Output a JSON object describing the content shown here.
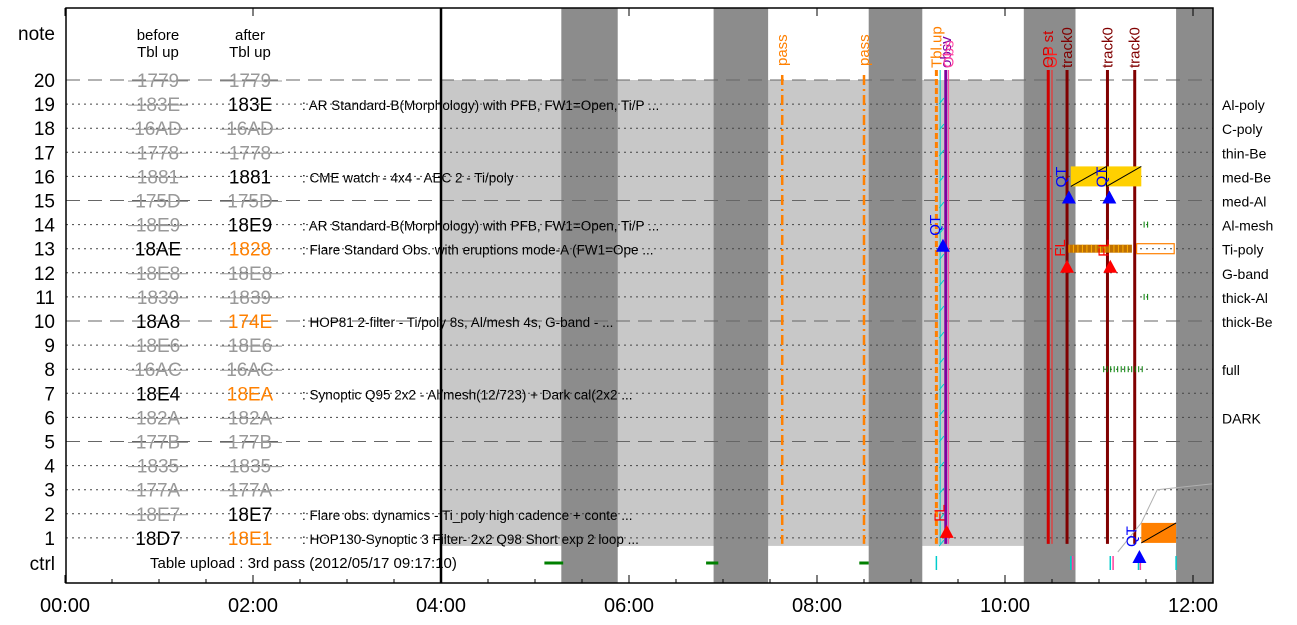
{
  "chart_data": {
    "type": "timeline",
    "header": {
      "note_label": "note",
      "ctrl_label": "ctrl",
      "before_label_1": "before",
      "before_label_2": "Tbl up",
      "after_label_1": "after",
      "after_label_2": "Tbl up"
    },
    "x_axis": {
      "range_hours": [
        0,
        12.25
      ],
      "ticks": [
        {
          "hour": 0,
          "label": "00:00"
        },
        {
          "hour": 2,
          "label": "02:00"
        },
        {
          "hour": 4,
          "label": "04:00"
        },
        {
          "hour": 6,
          "label": "06:00"
        },
        {
          "hour": 8,
          "label": "08:00"
        },
        {
          "hour": 10,
          "label": "10:00"
        },
        {
          "hour": 12,
          "label": "12:00"
        }
      ]
    },
    "rows": [
      {
        "n": 20,
        "label": "20",
        "before": "1779",
        "after": "1779",
        "bstate": "gray",
        "astate": "gray",
        "desc": "",
        "filter": ""
      },
      {
        "n": 19,
        "label": "19",
        "before": "183E",
        "after": "183E",
        "bstate": "gray",
        "astate": "black",
        "desc": ": AR Standard-B(Morphology) with PFB, FW1=Open, Ti/P ...",
        "filter": "Al-poly"
      },
      {
        "n": 18,
        "label": "18",
        "before": "16AD",
        "after": "16AD",
        "bstate": "gray",
        "astate": "gray",
        "desc": "",
        "filter": "C-poly"
      },
      {
        "n": 17,
        "label": "17",
        "before": "1778",
        "after": "1778",
        "bstate": "gray",
        "astate": "gray",
        "desc": "",
        "filter": "thin-Be"
      },
      {
        "n": 16,
        "label": "16",
        "before": "1881",
        "after": "1881",
        "bstate": "gray",
        "astate": "black",
        "desc": ": CME watch - 4x4 - AEC 2 - Ti/poly",
        "filter": "med-Be"
      },
      {
        "n": 15,
        "label": "15",
        "before": "175D",
        "after": "175D",
        "bstate": "gray",
        "astate": "gray",
        "desc": "",
        "filter": "med-Al"
      },
      {
        "n": 14,
        "label": "14",
        "before": "18E9",
        "after": "18E9",
        "bstate": "gray",
        "astate": "black",
        "desc": ": AR Standard-B(Morphology) with PFB, FW1=Open, Ti/P ...",
        "filter": "Al-mesh"
      },
      {
        "n": 13,
        "label": "13",
        "before": "18AE",
        "after": "1828",
        "bstate": "black",
        "astate": "orange",
        "desc": ": Flare Standard Obs. with eruptions mode-A (FW1=Ope ...",
        "filter": "Ti-poly"
      },
      {
        "n": 12,
        "label": "12",
        "before": "18E8",
        "after": "18E8",
        "bstate": "gray",
        "astate": "gray",
        "desc": "",
        "filter": "G-band"
      },
      {
        "n": 11,
        "label": "11",
        "before": "1839",
        "after": "1839",
        "bstate": "gray",
        "astate": "gray",
        "desc": "",
        "filter": "thick-Al"
      },
      {
        "n": 10,
        "label": "10",
        "before": "18A8",
        "after": "174E",
        "bstate": "black",
        "astate": "orange",
        "desc": ": HOP81 2-filter - Ti/poly 8s, Al/mesh 4s, G-band -  ...",
        "filter": "thick-Be"
      },
      {
        "n": 9,
        "label": "9",
        "before": "18E6",
        "after": "18E6",
        "bstate": "gray",
        "astate": "gray",
        "desc": "",
        "filter": ""
      },
      {
        "n": 8,
        "label": "8",
        "before": "16AC",
        "after": "16AC",
        "bstate": "gray",
        "astate": "gray",
        "desc": "",
        "filter": "full"
      },
      {
        "n": 7,
        "label": "7",
        "before": "18E4",
        "after": "18EA",
        "bstate": "black",
        "astate": "orange",
        "desc": ": Synoptic Q95 2x2 - Al/mesh(12/723) + Dark cal(2x2  ...",
        "filter": ""
      },
      {
        "n": 6,
        "label": "6",
        "before": "182A",
        "after": "182A",
        "bstate": "gray",
        "astate": "gray",
        "desc": "",
        "filter": "DARK"
      },
      {
        "n": 5,
        "label": "5",
        "before": "177B",
        "after": "177B",
        "bstate": "gray",
        "astate": "gray",
        "desc": "",
        "filter": ""
      },
      {
        "n": 4,
        "label": "4",
        "before": "1835",
        "after": "1835",
        "bstate": "gray",
        "astate": "gray",
        "desc": "",
        "filter": ""
      },
      {
        "n": 3,
        "label": "3",
        "before": "177A",
        "after": "177A",
        "bstate": "gray",
        "astate": "gray",
        "desc": "",
        "filter": ""
      },
      {
        "n": 2,
        "label": "2",
        "before": "18E7",
        "after": "18E7",
        "bstate": "gray",
        "astate": "black",
        "desc": ": Flare obs. dynamics - Ti_poly high cadence + conte ...",
        "filter": ""
      },
      {
        "n": 1,
        "label": "1",
        "before": "18D7",
        "after": "18E1",
        "bstate": "black",
        "astate": "orange",
        "desc": ": HOP130-Synoptic 3 Filter- 2x2 Q98 Short exp 2 loop ...",
        "filter": ""
      }
    ],
    "table_upload_text": "Table upload : 3rd pass (2012/05/17 09:17:10)",
    "table_upload_hour": 4.0,
    "gray_band": {
      "start": 4.0,
      "end": 10.48
    },
    "night_bands": [
      {
        "start": 5.28,
        "end": 5.88
      },
      {
        "start": 6.9,
        "end": 7.48
      },
      {
        "start": 8.55,
        "end": 9.12
      },
      {
        "start": 10.2,
        "end": 10.75
      },
      {
        "start": 11.82,
        "end": 12.25
      }
    ],
    "pass_lines": [
      {
        "hour": 7.63,
        "label": "pass"
      },
      {
        "hour": 8.5,
        "label": "pass"
      }
    ],
    "event_lines": [
      {
        "hour": 9.27,
        "color": "#ff8000",
        "label": "Tbl.up",
        "width": 3
      },
      {
        "hour": 9.31,
        "color": "#00cccc",
        "label": "",
        "width": 1
      },
      {
        "hour": 9.37,
        "color": "#8000a0",
        "label": "obsv",
        "width": 3
      },
      {
        "hour": 9.4,
        "color": "#ff40a0",
        "label": "Obs",
        "width": 1
      },
      {
        "hour": 10.46,
        "color": "#d00000",
        "label": "OP st",
        "width": 3
      },
      {
        "hour": 10.5,
        "color": "#ff2020",
        "label": "OP",
        "width": 1
      },
      {
        "hour": 10.66,
        "color": "#800000",
        "label": "track0",
        "width": 3
      },
      {
        "hour": 11.09,
        "color": "#800000",
        "label": "track0",
        "width": 3
      },
      {
        "hour": 11.38,
        "color": "#800000",
        "label": "track0",
        "width": 3
      }
    ],
    "qt_markers": [
      {
        "hour": 9.34,
        "row": 13,
        "label": "QT"
      },
      {
        "hour": 10.68,
        "row": 15,
        "label": "QT"
      },
      {
        "hour": 11.11,
        "row": 15,
        "label": "QT"
      },
      {
        "hour": 11.43,
        "row": 0,
        "label": "QT"
      }
    ],
    "fl_markers": [
      {
        "hour": 9.38,
        "row": 1,
        "label": "FL"
      },
      {
        "hour": 10.66,
        "row": 12,
        "label": "FL"
      },
      {
        "hour": 11.12,
        "row": 12,
        "label": "FL"
      }
    ],
    "colors": {
      "gray_band": "#c8c8c8",
      "night": "#8c8c8c",
      "pass": "#ff8000",
      "qt": "#0000ff",
      "fl": "#ff0000",
      "gray_text": "#999999",
      "orange_text": "#ff8000",
      "green": "#008000",
      "yellow_box": "#ffd000",
      "orange_box": "#ff8000"
    }
  }
}
